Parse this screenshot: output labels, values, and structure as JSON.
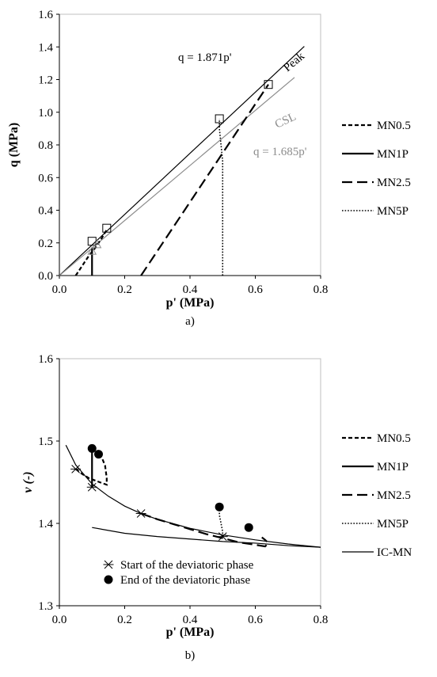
{
  "chart_data": [
    {
      "type": "line",
      "panel_label": "a)",
      "xlabel": "p' (MPa)",
      "ylabel": "q (MPa)",
      "xlim": [
        0,
        0.8
      ],
      "ylim": [
        0,
        1.6
      ],
      "x_ticks": [
        "0.0",
        "0.2",
        "0.4",
        "0.6",
        "0.8"
      ],
      "y_ticks": [
        "0.0",
        "0.2",
        "0.4",
        "0.6",
        "0.8",
        "1.0",
        "1.2",
        "1.4",
        "1.6"
      ],
      "grid": false,
      "legend_position": "right",
      "reference_lines": [
        {
          "label": "Peak",
          "equation": "q = 1.871p'",
          "slope": 1.871,
          "x_range": [
            0.0,
            0.75
          ],
          "color": "#000000"
        },
        {
          "label": "CSL",
          "equation": "q = 1.685p'",
          "slope": 1.685,
          "x_range": [
            0.0,
            0.72
          ],
          "color": "#8c8c8c"
        }
      ],
      "series": [
        {
          "name": "MN0.5",
          "dash": "short-dash",
          "points": [
            [
              0.05,
              0.0
            ],
            [
              0.07,
              0.06
            ],
            [
              0.09,
              0.12
            ],
            [
              0.11,
              0.17
            ],
            [
              0.13,
              0.23
            ],
            [
              0.145,
              0.28
            ]
          ]
        },
        {
          "name": "MN1P",
          "dash": "solid",
          "points": [
            [
              0.1,
              0.0
            ],
            [
              0.1,
              0.1
            ],
            [
              0.1,
              0.17
            ]
          ]
        },
        {
          "name": "MN2.5",
          "dash": "long-dash",
          "points": [
            [
              0.25,
              0.0
            ],
            [
              0.29,
              0.12
            ],
            [
              0.33,
              0.24
            ],
            [
              0.37,
              0.36
            ],
            [
              0.41,
              0.48
            ],
            [
              0.45,
              0.6
            ],
            [
              0.49,
              0.72
            ],
            [
              0.53,
              0.84
            ],
            [
              0.57,
              0.96
            ],
            [
              0.61,
              1.08
            ],
            [
              0.64,
              1.17
            ]
          ]
        },
        {
          "name": "MN5P",
          "dash": "dotted",
          "points": [
            [
              0.5,
              0.0
            ],
            [
              0.5,
              0.7
            ],
            [
              0.495,
              0.8
            ],
            [
              0.49,
              0.9
            ],
            [
              0.49,
              0.96
            ]
          ]
        }
      ],
      "peak_markers": [
        [
          0.1,
          0.21
        ],
        [
          0.145,
          0.29
        ],
        [
          0.49,
          0.96
        ],
        [
          0.64,
          1.17
        ]
      ],
      "csl_markers": [
        [
          0.1,
          0.15
        ],
        [
          0.115,
          0.19
        ]
      ]
    },
    {
      "type": "line",
      "panel_label": "b)",
      "xlabel": "p' (MPa)",
      "ylabel": "v (-)",
      "xlim": [
        0,
        0.8
      ],
      "ylim": [
        1.3,
        1.6
      ],
      "x_ticks": [
        "0.0",
        "0.2",
        "0.4",
        "0.6",
        "0.8"
      ],
      "y_ticks": [
        "1.3",
        "1.4",
        "1.5",
        "1.6"
      ],
      "grid": false,
      "legend_position": "right",
      "series": [
        {
          "name": "MN0.5",
          "dash": "short-dash",
          "points": [
            [
              0.05,
              1.466
            ],
            [
              0.07,
              1.46
            ],
            [
              0.09,
              1.455
            ],
            [
              0.11,
              1.452
            ],
            [
              0.13,
              1.449
            ],
            [
              0.145,
              1.447
            ],
            [
              0.145,
              1.455
            ],
            [
              0.14,
              1.47
            ],
            [
              0.13,
              1.48
            ],
            [
              0.12,
              1.484
            ]
          ]
        },
        {
          "name": "MN1P",
          "dash": "solid",
          "points": [
            [
              0.1,
              1.444
            ],
            [
              0.1,
              1.46
            ],
            [
              0.1,
              1.475
            ],
            [
              0.1,
              1.491
            ]
          ]
        },
        {
          "name": "MN2.5",
          "dash": "long-dash",
          "points": [
            [
              0.25,
              1.412
            ],
            [
              0.3,
              1.405
            ],
            [
              0.35,
              1.399
            ],
            [
              0.4,
              1.393
            ],
            [
              0.45,
              1.387
            ],
            [
              0.5,
              1.382
            ],
            [
              0.55,
              1.377
            ],
            [
              0.6,
              1.374
            ],
            [
              0.63,
              1.372
            ],
            [
              0.64,
              1.376
            ],
            [
              0.63,
              1.38
            ],
            [
              0.62,
              1.383
            ]
          ]
        },
        {
          "name": "MN5P",
          "dash": "dotted",
          "points": [
            [
              0.5,
              1.384
            ],
            [
              0.5,
              1.39
            ],
            [
              0.495,
              1.4
            ],
            [
              0.49,
              1.41
            ],
            [
              0.49,
              1.42
            ]
          ]
        },
        {
          "name": "IC-MN",
          "dash": "solid-thin",
          "points": [
            [
              0.02,
              1.495
            ],
            [
              0.05,
              1.471
            ],
            [
              0.1,
              1.448
            ],
            [
              0.15,
              1.433
            ],
            [
              0.2,
              1.421
            ],
            [
              0.25,
              1.412
            ],
            [
              0.3,
              1.405
            ],
            [
              0.4,
              1.394
            ],
            [
              0.5,
              1.386
            ],
            [
              0.6,
              1.38
            ],
            [
              0.7,
              1.375
            ],
            [
              0.8,
              1.371
            ]
          ]
        },
        {
          "name": "",
          "dash": "solid-thin",
          "points": [
            [
              0.1,
              1.395
            ],
            [
              0.2,
              1.388
            ],
            [
              0.3,
              1.384
            ],
            [
              0.4,
              1.381
            ],
            [
              0.5,
              1.378
            ],
            [
              0.6,
              1.376
            ],
            [
              0.7,
              1.373
            ],
            [
              0.8,
              1.371
            ]
          ]
        }
      ],
      "start_markers": [
        [
          0.05,
          1.466
        ],
        [
          0.1,
          1.444
        ],
        [
          0.25,
          1.412
        ],
        [
          0.5,
          1.384
        ]
      ],
      "end_markers": [
        [
          0.1,
          1.491
        ],
        [
          0.12,
          1.484
        ],
        [
          0.49,
          1.42
        ],
        [
          0.58,
          1.395
        ]
      ],
      "annotations": [
        "Start of the deviatoric phase",
        "End of the deviatoric phase"
      ]
    }
  ]
}
